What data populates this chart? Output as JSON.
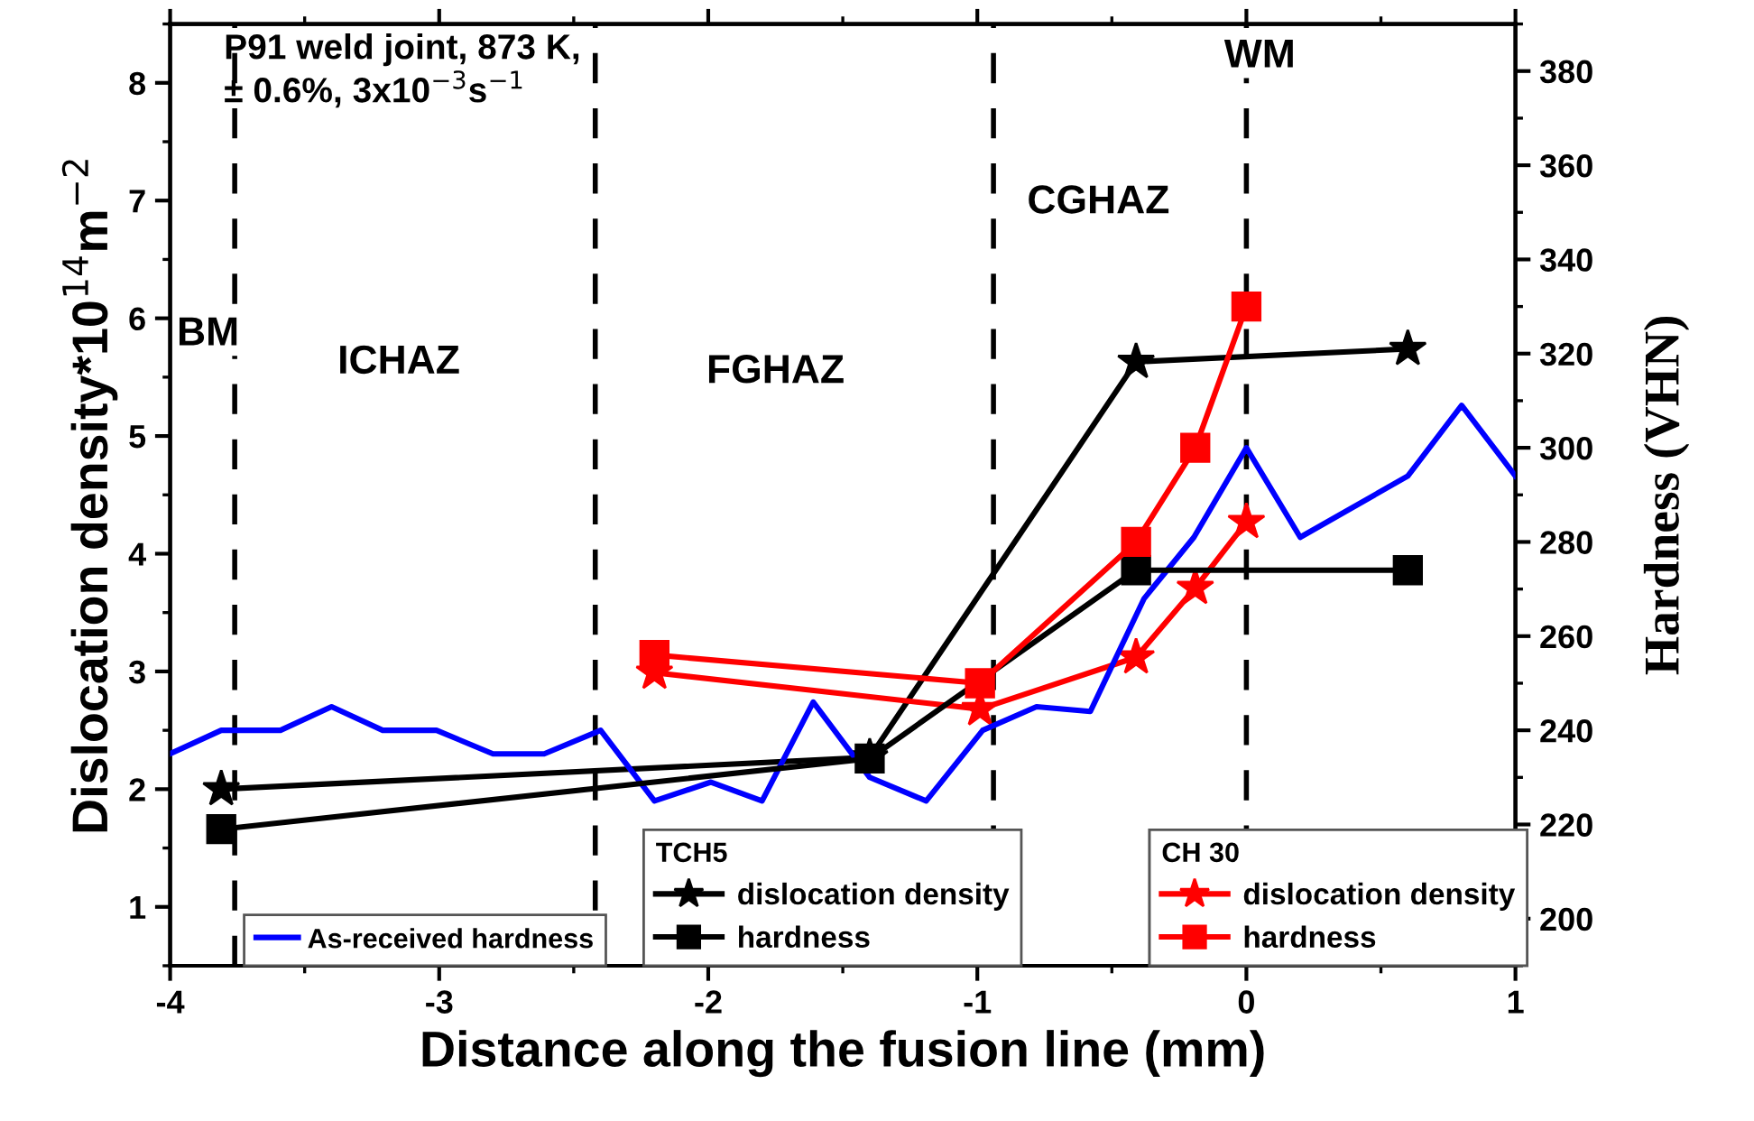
{
  "chart_data": {
    "type": "line",
    "xlabel": "Distance along the fusion line (mm)",
    "ylabel": "Dislocation density*10$^{14}$m$^{−2}$",
    "y2label": "Hardness (VHN)",
    "xlim": [
      -4,
      1
    ],
    "xticks": [
      -4,
      -3,
      -2,
      -1,
      0,
      1
    ],
    "ylim": [
      0.5,
      8.5
    ],
    "yticks": [
      1,
      2,
      3,
      4,
      5,
      6,
      7,
      8
    ],
    "y2lim": [
      190,
      390
    ],
    "y2ticks": [
      200,
      220,
      240,
      260,
      280,
      300,
      320,
      340,
      360,
      380
    ],
    "grid": false,
    "legend": "bottom",
    "legend_title": [
      "TCH5",
      "CH 30"
    ],
    "ref_lines": [
      {
        "axis": "x",
        "value": -3.76,
        "color": "#000000",
        "line_style": "dashed"
      },
      {
        "axis": "x",
        "value": -2.42,
        "color": "#000000",
        "line_style": "dashed"
      },
      {
        "axis": "x",
        "value": -0.94,
        "color": "#000000",
        "line_style": "dashed"
      },
      {
        "axis": "x",
        "value": 0,
        "color": "#000000",
        "line_style": "dashed"
      }
    ],
    "annotations": [
      "P91 weld joint, 873 K,\n± 0.6%, 3x10$^{−3}$s$^{−1}$",
      "BM",
      "ICHAZ",
      "FGHAZ",
      "CGHAZ",
      "WM"
    ],
    "series": [
      {
        "name": "As-received hardness",
        "color": "#0000ff",
        "axis": "y2",
        "marker": "none",
        "x": [
          -4,
          -3.81,
          -3.59,
          -3.4,
          -3.21,
          -3.01,
          -2.8,
          -2.61,
          -2.4,
          -2.2,
          -1.99,
          -1.8,
          -1.61,
          -1.4,
          -1.19,
          -0.98,
          -0.78,
          -0.58,
          -0.38,
          -0.195,
          0,
          0.2,
          0.6,
          0.8,
          1.0
        ],
        "values": [
          235,
          240,
          240,
          245,
          240,
          240,
          235,
          235,
          240,
          225,
          229,
          225,
          246,
          230,
          225,
          240,
          245,
          244,
          268,
          281,
          300,
          281,
          294,
          309,
          294
        ]
      },
      {
        "name": "dislocation density",
        "color": "#000000",
        "marker": "star",
        "x": [
          -3.81,
          -1.4,
          -0.41,
          0.6
        ],
        "values": [
          2.0,
          2.27,
          5.63,
          5.74
        ]
      },
      {
        "name": "hardness",
        "color": "#000000",
        "axis": "y2",
        "marker": "square",
        "x": [
          -3.81,
          -1.4,
          -0.41,
          0.6
        ],
        "values": [
          219,
          234,
          274,
          274
        ]
      },
      {
        "name": "dislocation density",
        "color": "#ff0000",
        "marker": "star",
        "x": [
          -2.2,
          -0.99,
          -0.41,
          -0.19,
          0
        ],
        "values": [
          2.99,
          2.68,
          3.12,
          3.71,
          4.27
        ]
      },
      {
        "name": "hardness",
        "color": "#ff0000",
        "axis": "y2",
        "marker": "square",
        "x": [
          -2.2,
          -0.99,
          -0.41,
          -0.19,
          0
        ],
        "values": [
          256,
          250,
          280,
          300,
          330
        ]
      }
    ]
  }
}
